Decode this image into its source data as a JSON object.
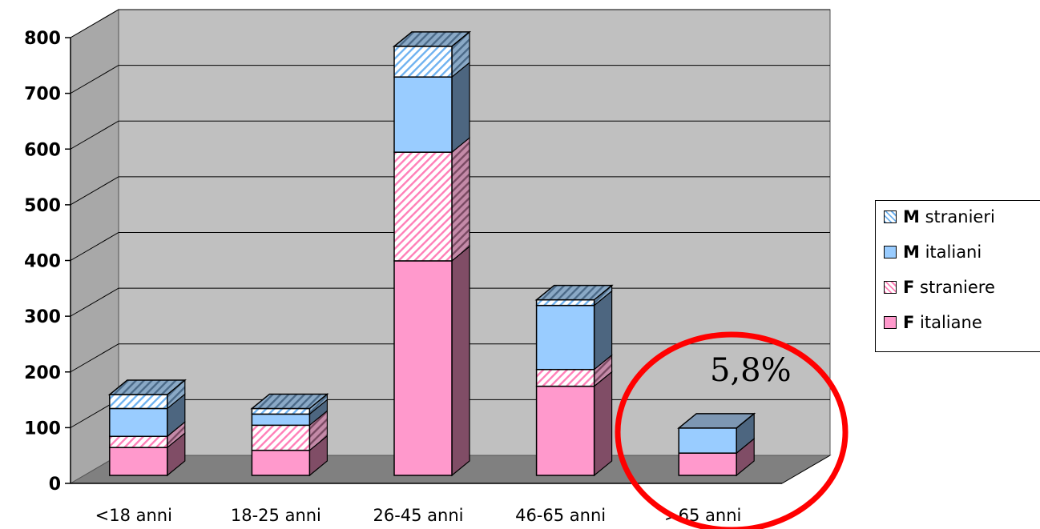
{
  "chart_data": {
    "type": "bar",
    "stacked": true,
    "three_d": true,
    "categories": [
      "<18 anni",
      "18-25 anni",
      "26-45 anni",
      "46-65 anni",
      ">65 anni"
    ],
    "series": [
      {
        "name": "F italiane",
        "values": [
          50,
          45,
          385,
          160,
          40
        ],
        "color": "#ff99cc",
        "pattern": "solid"
      },
      {
        "name": "F straniere",
        "values": [
          20,
          45,
          195,
          30,
          0
        ],
        "color": "#ff99cc",
        "pattern": "hatch"
      },
      {
        "name": "M italiani",
        "values": [
          50,
          20,
          135,
          115,
          45
        ],
        "color": "#99ccff",
        "pattern": "solid"
      },
      {
        "name": "M stranieri",
        "values": [
          25,
          10,
          55,
          10,
          0
        ],
        "color": "#99ccff",
        "pattern": "hatch"
      }
    ],
    "ylim": [
      0,
      800
    ],
    "yticks": [
      "0",
      "100",
      "200",
      "300",
      "400",
      "500",
      "600",
      "700",
      "800"
    ],
    "grid": true,
    "legend_position": "right",
    "plot_background": "#c0c0c0",
    "floor_color": "#808080",
    "annotation": {
      "text": "5,8%",
      "target_category": ">65 anni",
      "circle_color": "#ff0000"
    }
  },
  "legend": {
    "items": [
      {
        "cap": "M",
        "rest": " stranieri",
        "color": "#99ccff",
        "pattern": "hatch"
      },
      {
        "cap": "M",
        "rest": " italiani",
        "color": "#99ccff",
        "pattern": "solid"
      },
      {
        "cap": "F",
        "rest": " straniere",
        "color": "#ff99cc",
        "pattern": "hatch"
      },
      {
        "cap": "F",
        "rest": " italiane",
        "color": "#ff99cc",
        "pattern": "solid"
      }
    ]
  }
}
